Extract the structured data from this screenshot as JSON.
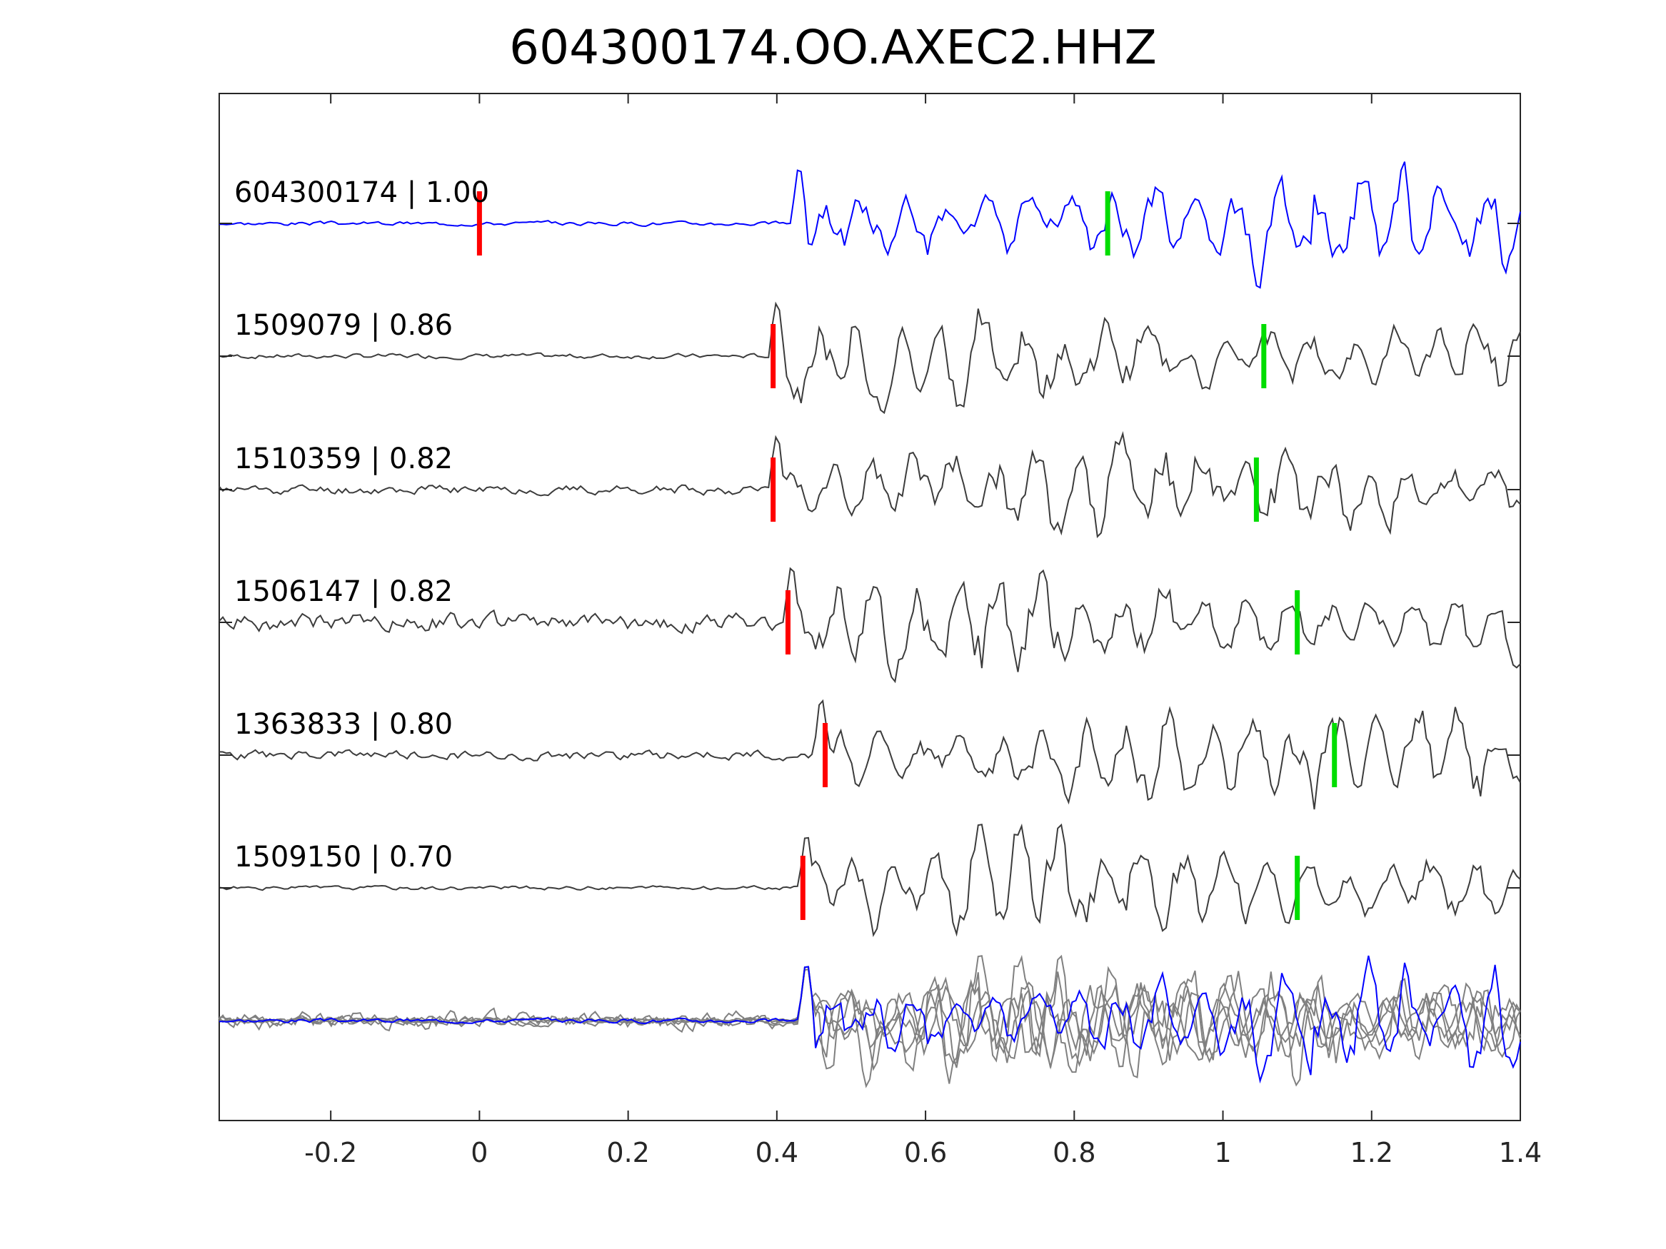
{
  "chart_data": {
    "type": "line",
    "title": "604300174.OO.AXEC2.HHZ",
    "xlabel": "",
    "ylabel": "",
    "xlim": [
      -0.35,
      1.4
    ],
    "xticks": [
      "-0.2",
      "0",
      "0.2",
      "0.4",
      "0.6",
      "0.8",
      "1",
      "1.2",
      "1.4"
    ],
    "xtick_values": [
      -0.2,
      0,
      0.2,
      0.4,
      0.6,
      0.8,
      1.0,
      1.2,
      1.4
    ],
    "grid": false,
    "series": [
      {
        "name": "604300174 | 1.00",
        "color": "#0000ff",
        "p_pick": 0.0,
        "s_pick": 0.845,
        "onset": 0.42,
        "noise": 0.05,
        "amp": 1.0,
        "seed": 3
      },
      {
        "name": "1509079 | 0.86",
        "color": "#3c3c3c",
        "p_pick": 0.395,
        "s_pick": 1.055,
        "onset": 0.39,
        "noise": 0.06,
        "amp": 0.95,
        "seed": 7
      },
      {
        "name": "1510359 | 0.82",
        "color": "#3c3c3c",
        "p_pick": 0.395,
        "s_pick": 1.045,
        "onset": 0.39,
        "noise": 0.12,
        "amp": 0.95,
        "seed": 11
      },
      {
        "name": "1506147 | 0.82",
        "color": "#3c3c3c",
        "p_pick": 0.415,
        "s_pick": 1.1,
        "onset": 0.41,
        "noise": 0.22,
        "amp": 1.0,
        "seed": 19
      },
      {
        "name": "1363833 | 0.80",
        "color": "#3c3c3c",
        "p_pick": 0.465,
        "s_pick": 1.15,
        "onset": 0.45,
        "noise": 0.12,
        "amp": 1.0,
        "seed": 23
      },
      {
        "name": "1509150 | 0.70",
        "color": "#3c3c3c",
        "p_pick": 0.435,
        "s_pick": 1.1,
        "onset": 0.43,
        "noise": 0.05,
        "amp": 0.95,
        "seed": 31
      }
    ],
    "overlay": {
      "color_reference": "#0000ff",
      "color_others": "#808080"
    },
    "pick_colors": {
      "p": "#ff0000",
      "s": "#00dd00"
    }
  }
}
